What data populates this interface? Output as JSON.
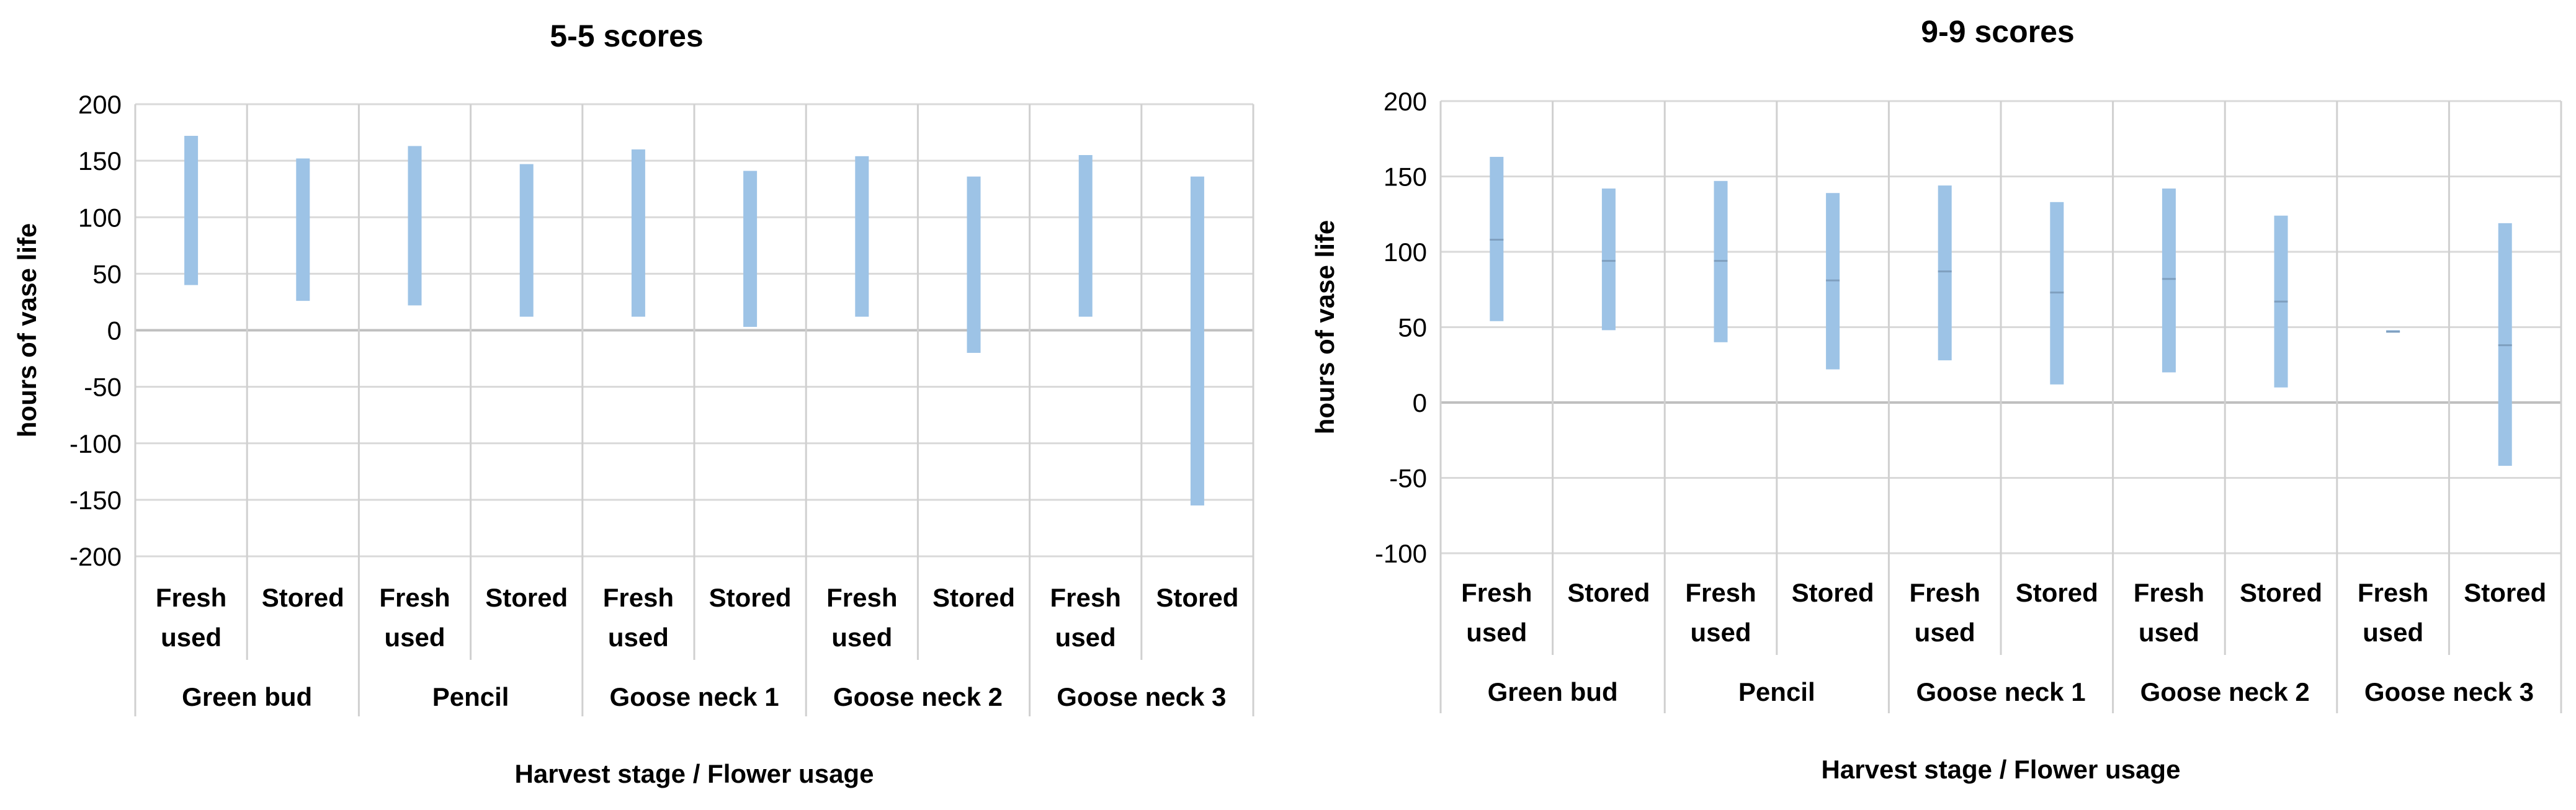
{
  "colors": {
    "bar": "#9dc3e6",
    "mid_mark": "#7f9fbf",
    "grid": "#d9d9d9",
    "axis": "#bfbfbf"
  },
  "chart_data": [
    {
      "type": "bar",
      "title": "5-5 scores",
      "xlabel": "Harvest stage / Flower usage",
      "ylabel": "hours of vase life",
      "ylim": [
        -200,
        200
      ],
      "yticks": [
        200,
        150,
        100,
        50,
        0,
        -50,
        -100,
        -150,
        -200
      ],
      "grid": true,
      "groups": [
        "Green bud",
        "Pencil",
        "Goose neck 1",
        "Goose neck 2",
        "Goose neck 3"
      ],
      "subcategories": [
        [
          "Fresh",
          "used"
        ],
        [
          "Stored"
        ]
      ],
      "series": [
        {
          "low": [
            40,
            26,
            22,
            12,
            12,
            3,
            12,
            -20,
            12,
            -155
          ],
          "high": [
            172,
            152,
            163,
            147,
            160,
            141,
            154,
            136,
            155,
            136
          ]
        }
      ]
    },
    {
      "type": "bar",
      "title": "9-9 scores",
      "xlabel": "Harvest stage / Flower usage",
      "ylabel": "hours of vase life",
      "ylim": [
        -100,
        200
      ],
      "yticks": [
        200,
        150,
        100,
        50,
        0,
        -50,
        -100
      ],
      "grid": true,
      "groups": [
        "Green bud",
        "Pencil",
        "Goose neck 1",
        "Goose neck 2",
        "Goose neck 3"
      ],
      "subcategories": [
        [
          "Fresh",
          "used"
        ],
        [
          "Stored"
        ]
      ],
      "series": [
        {
          "low": [
            54,
            48,
            40,
            22,
            28,
            12,
            20,
            10,
            47,
            -42
          ],
          "high": [
            163,
            142,
            147,
            139,
            144,
            133,
            142,
            124,
            48,
            119
          ],
          "mid": [
            108,
            94,
            94,
            81,
            87,
            73,
            82,
            67,
            47,
            38
          ]
        }
      ]
    }
  ]
}
